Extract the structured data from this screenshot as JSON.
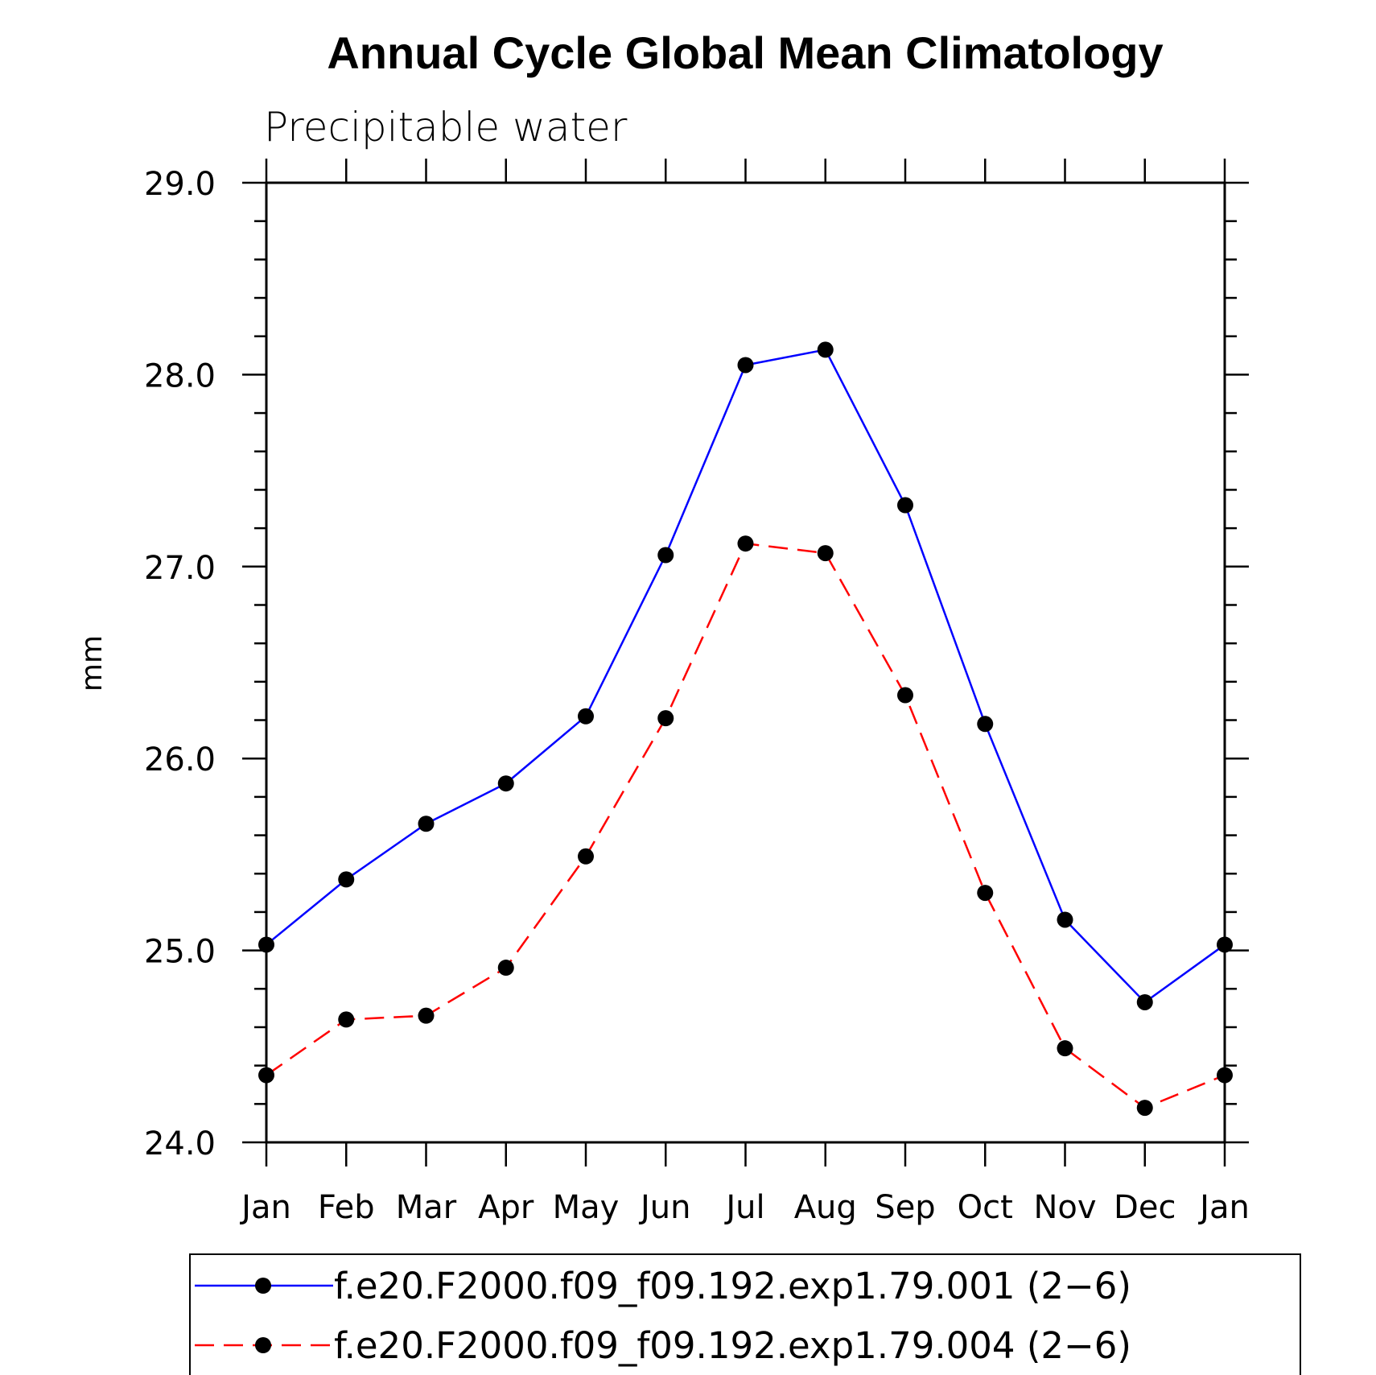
{
  "chart_data": {
    "type": "line",
    "title": "Annual Cycle Global Mean Climatology",
    "subtitle": "Precipitable water",
    "xlabel": "",
    "ylabel": "mm",
    "categories": [
      "Jan",
      "Feb",
      "Mar",
      "Apr",
      "May",
      "Jun",
      "Jul",
      "Aug",
      "Sep",
      "Oct",
      "Nov",
      "Dec",
      "Jan"
    ],
    "ylim": [
      24.0,
      29.0
    ],
    "yticks": [
      "24.0",
      "25.0",
      "26.0",
      "27.0",
      "28.0",
      "29.0"
    ],
    "grid": false,
    "legend_position": "bottom",
    "series": [
      {
        "name": "f.e20.F2000.f09_f09.192.exp1.79.001 (2−6)",
        "color": "#0000ff",
        "style": "solid",
        "values": [
          25.03,
          25.37,
          25.66,
          25.87,
          26.22,
          27.06,
          28.05,
          28.13,
          27.32,
          26.18,
          25.16,
          24.73,
          25.03
        ]
      },
      {
        "name": "f.e20.F2000.f09_f09.192.exp1.79.004 (2−6)",
        "color": "#ff0000",
        "style": "dashed",
        "values": [
          24.35,
          24.64,
          24.66,
          24.91,
          25.49,
          26.21,
          27.12,
          27.07,
          26.33,
          25.3,
          24.49,
          24.18,
          24.35
        ]
      }
    ]
  }
}
